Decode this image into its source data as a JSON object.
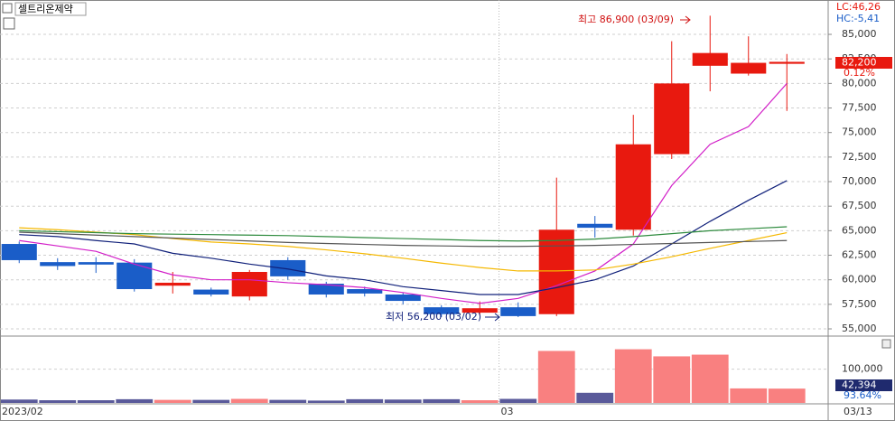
{
  "chart_data": {
    "type": "candlestick",
    "title": "셀트리온제약",
    "indicators": [
      "LC:46,26",
      "HC:-5,41"
    ],
    "high_label": "최고 86,900 (03/09)",
    "low_label": "최저 56,200 (03/02)",
    "price_tag": "82,200",
    "change_tag": "0.12%",
    "volume_tag": "42,394",
    "volume_ratio_tag": "93.64%",
    "categories": [
      "2023/02",
      null,
      null,
      null,
      null,
      null,
      null,
      null,
      null,
      null,
      null,
      null,
      null,
      "03",
      null,
      null,
      null,
      null,
      null,
      null,
      "03/13"
    ],
    "open": [
      63650,
      61800,
      61800,
      61750,
      59400,
      59000,
      58300,
      62000,
      59600,
      59050,
      58500,
      57200,
      56650,
      57200,
      56500,
      65700,
      65100,
      72800,
      81800,
      81000,
      82000
    ],
    "high": [
      63900,
      62200,
      62300,
      62100,
      60800,
      59200,
      61000,
      62300,
      59800,
      59300,
      58700,
      57400,
      57800,
      57700,
      70400,
      66500,
      76800,
      84300,
      86900,
      84800,
      83000
    ],
    "low": [
      61700,
      61000,
      60700,
      58800,
      58600,
      58300,
      57900,
      60000,
      58200,
      58300,
      57500,
      56200,
      56400,
      56200,
      56300,
      64300,
      64500,
      72300,
      79200,
      80800,
      77200
    ],
    "close": [
      62000,
      61400,
      61550,
      59050,
      59700,
      58500,
      60800,
      60350,
      58500,
      58600,
      57850,
      56500,
      57100,
      56300,
      65100,
      65300,
      73800,
      80000,
      83100,
      82100,
      82200
    ],
    "up_color": "#e8190f",
    "down_color": "#1a5dc8",
    "lines": [
      {
        "color": "#d21fc8",
        "values": [
          64000,
          63450,
          62900,
          61600,
          60500,
          60000,
          60000,
          59700,
          59500,
          59200,
          58700,
          58100,
          57600,
          58100,
          59400,
          60900,
          63650,
          69600,
          73800,
          75600,
          80000
        ]
      },
      {
        "color": "#10207a",
        "values": [
          64600,
          64400,
          64000,
          63650,
          62700,
          62200,
          61600,
          61100,
          60400,
          60000,
          59300,
          58900,
          58500,
          58500,
          59200,
          60000,
          61400,
          63650,
          65950,
          68100,
          70100
        ]
      },
      {
        "color": "#f5b800",
        "values": [
          65300,
          65100,
          64850,
          64600,
          64200,
          63850,
          63650,
          63400,
          63050,
          62650,
          62200,
          61700,
          61250,
          60900,
          60900,
          61000,
          61600,
          62350,
          63200,
          64000,
          64800
        ]
      },
      {
        "color": "#2e8b3e",
        "values": [
          65000,
          64900,
          64800,
          64700,
          64650,
          64600,
          64550,
          64500,
          64400,
          64300,
          64200,
          64100,
          64000,
          63950,
          64000,
          64150,
          64400,
          64700,
          65000,
          65200,
          65400
        ]
      },
      {
        "color": "#555555",
        "values": [
          64850,
          64700,
          64550,
          64400,
          64250,
          64100,
          63950,
          63800,
          63700,
          63600,
          63500,
          63450,
          63400,
          63400,
          63450,
          63500,
          63600,
          63700,
          63800,
          63900,
          64000
        ]
      }
    ],
    "ylim": [
      54450,
      88500
    ],
    "yticks": [
      {
        "value": 55000,
        "label": "55,000"
      },
      {
        "value": 57500,
        "label": "57,500"
      },
      {
        "value": 60000,
        "label": "60,000"
      },
      {
        "value": 62500,
        "label": "62,500"
      },
      {
        "value": 65000,
        "label": "65,000"
      },
      {
        "value": 67500,
        "label": "67,500"
      },
      {
        "value": 70000,
        "label": "70,000"
      },
      {
        "value": 72500,
        "label": "72,500"
      },
      {
        "value": 75000,
        "label": "75,000"
      },
      {
        "value": 77500,
        "label": "77,500"
      },
      {
        "value": 80000,
        "label": "80,000"
      },
      {
        "value": 82500,
        "label": "82,500"
      },
      {
        "value": 85000,
        "label": "85,000"
      }
    ],
    "volume": [
      10000,
      8000,
      8000,
      11000,
      9000,
      9000,
      12000,
      9000,
      7000,
      11000,
      10000,
      11000,
      8000,
      12000,
      154000,
      30000,
      159000,
      138000,
      143000,
      43000,
      42394
    ],
    "volume_up_color": "#f98080",
    "volume_down_color": "#5a5a9a",
    "volume_ylim": [
      0,
      190000
    ],
    "volume_yticks": [
      {
        "value": 100000,
        "label": "100,000"
      }
    ]
  }
}
